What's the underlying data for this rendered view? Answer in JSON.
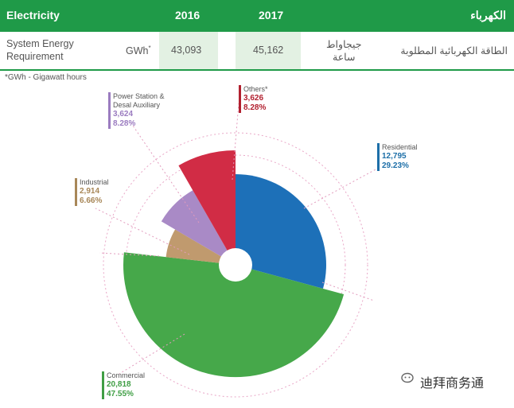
{
  "header": {
    "title": "Electricity",
    "col_2016": "2016",
    "col_2017": "2017",
    "title_ar": "الكهرباء"
  },
  "row": {
    "label_line1": "System Energy",
    "label_line2": "Requirement",
    "unit": "GWh",
    "unit_mark": "*",
    "value_2016": "43,093",
    "value_2017": "45,162",
    "unit_ar_line1": "جيجاواط",
    "unit_ar_line2": "ساعة",
    "label_ar": "الطاقة الكهربائية المطلوبة"
  },
  "footnote": "*GWh - Gigawatt hours",
  "watermark": "迪拜商务通",
  "chart_data": {
    "type": "pie",
    "title": "",
    "categories": [
      "Residential",
      "Commercial",
      "Industrial",
      "Power Station & Desal Auxiliary",
      "Others"
    ],
    "series": [
      {
        "values": [
          12795,
          20818,
          2914,
          3624,
          3626
        ],
        "percent_labels": [
          "29.23%",
          "47.55%",
          "6.66%",
          "8.28%",
          "8.28%"
        ],
        "value_labels": [
          "12,795",
          "20,818",
          "2,914",
          "3,624",
          "3,626"
        ]
      }
    ],
    "colors": [
      "#1d70b8",
      "#46a84a",
      "#c09a6e",
      "#a98ac6",
      "#d12c45"
    ],
    "label_colors": [
      "#1d6fa8",
      "#3f9e44",
      "#a88758",
      "#9b7cc0",
      "#b2202f"
    ],
    "legend": "none",
    "grid": false
  }
}
